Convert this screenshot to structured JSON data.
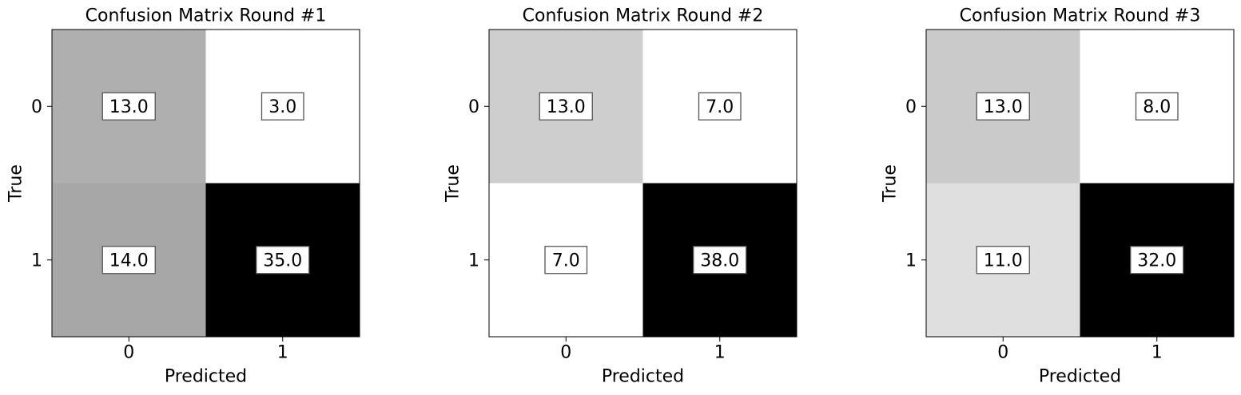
{
  "chart_data": [
    {
      "type": "heatmap",
      "title": "Confusion Matrix Round #1",
      "xlabel": "Predicted",
      "ylabel": "True",
      "x_categories": [
        "0",
        "1"
      ],
      "y_categories": [
        "0",
        "1"
      ],
      "values": [
        [
          13.0,
          3.0
        ],
        [
          14.0,
          35.0
        ]
      ],
      "cell_labels": [
        [
          "13.0",
          "3.0"
        ],
        [
          "14.0",
          "35.0"
        ]
      ],
      "colormap": "Greys",
      "grid": false
    },
    {
      "type": "heatmap",
      "title": "Confusion Matrix Round #2",
      "xlabel": "Predicted",
      "ylabel": "True",
      "x_categories": [
        "0",
        "1"
      ],
      "y_categories": [
        "0",
        "1"
      ],
      "values": [
        [
          13.0,
          7.0
        ],
        [
          7.0,
          38.0
        ]
      ],
      "cell_labels": [
        [
          "13.0",
          "7.0"
        ],
        [
          "7.0",
          "38.0"
        ]
      ],
      "colormap": "Greys",
      "grid": false
    },
    {
      "type": "heatmap",
      "title": "Confusion Matrix Round #3",
      "xlabel": "Predicted",
      "ylabel": "True",
      "x_categories": [
        "0",
        "1"
      ],
      "y_categories": [
        "0",
        "1"
      ],
      "values": [
        [
          13.0,
          8.0
        ],
        [
          11.0,
          32.0
        ]
      ],
      "cell_labels": [
        [
          "13.0",
          "8.0"
        ],
        [
          "11.0",
          "32.0"
        ]
      ],
      "colormap": "Greys",
      "grid": false
    }
  ]
}
